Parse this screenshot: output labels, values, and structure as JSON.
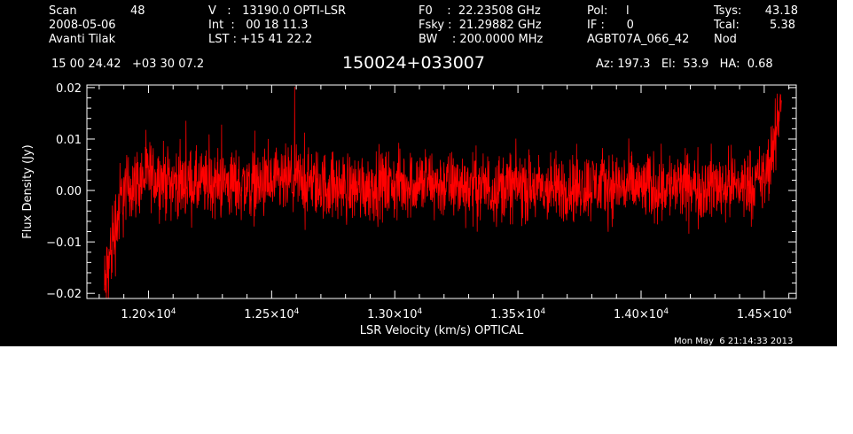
{
  "header": {
    "scan_label": "Scan",
    "scan_value": "48",
    "date": "2008-05-06",
    "observer": "Avanti Tilak",
    "v_line": "V   :   13190.0 OPTI-LSR",
    "int_line": "Int  :   00 18 11.3",
    "lst_line": "LST : +15 41 22.2",
    "f0_line": "F0    :  22.23508 GHz",
    "fsky_line": "Fsky :  21.29882 GHz",
    "bw_line": "BW    : 200.0000 MHz",
    "pol_line": "Pol:     l",
    "if_line": "IF :      0",
    "project": "AGBT07A_066_42",
    "tsys_label": "Tsys:",
    "tsys_value": "43.18",
    "tcal_label": "Tcal:",
    "tcal_value": "5.38",
    "mode": "Nod",
    "coords": "15 00 24.42   +03 30 07.2",
    "source": "150024+033007",
    "azelha": "Az: 197.3   El:  53.9   HA:  0.68"
  },
  "footer": {
    "timestamp": "Mon May  6 21:14:33 2013"
  },
  "chart_data": {
    "type": "line",
    "xlabel": "LSR Velocity (km/s) OPTICAL",
    "ylabel": "Flux Density (Jy)",
    "xlim": [
      11750,
      14630
    ],
    "ylim": [
      -0.021,
      0.0205
    ],
    "x_ticks": [
      {
        "value": 12000,
        "mant": "1.20",
        "exp": "4"
      },
      {
        "value": 12500,
        "mant": "1.25",
        "exp": "4"
      },
      {
        "value": 13000,
        "mant": "1.30",
        "exp": "4"
      },
      {
        "value": 13500,
        "mant": "1.35",
        "exp": "4"
      },
      {
        "value": 14000,
        "mant": "1.40",
        "exp": "4"
      },
      {
        "value": 14500,
        "mant": "1.45",
        "exp": "4"
      }
    ],
    "y_ticks": [
      {
        "value": 0.02,
        "label": "0.02"
      },
      {
        "value": 0.01,
        "label": "0.01"
      },
      {
        "value": 0.0,
        "label": "0.00"
      },
      {
        "value": -0.01,
        "label": "−0.01"
      },
      {
        "value": -0.02,
        "label": "−0.02"
      }
    ],
    "grid": false,
    "series": [
      {
        "color": "#ff0000",
        "x": [
          11820,
          11860,
          11900,
          12000,
          12100,
          12200,
          12300,
          12400,
          12500,
          12600,
          12700,
          12800,
          12900,
          13000,
          13100,
          13200,
          13300,
          13400,
          13500,
          13600,
          13700,
          13800,
          13900,
          14000,
          14100,
          14200,
          14300,
          14400,
          14500,
          14540,
          14570
        ],
        "y": [
          -0.02,
          -0.008,
          0.0,
          0.003,
          0.0015,
          0.001,
          0.0015,
          0.001,
          0.001,
          0.002,
          0.001,
          0.0005,
          0.001,
          0.001,
          0.0015,
          0.001,
          0.001,
          0.0005,
          0.001,
          0.0,
          0.0005,
          0.001,
          0.001,
          0.0005,
          0.001,
          0.0005,
          0.001,
          0.001,
          0.002,
          0.008,
          0.019
        ],
        "noise_amplitude": 0.006
      }
    ]
  }
}
